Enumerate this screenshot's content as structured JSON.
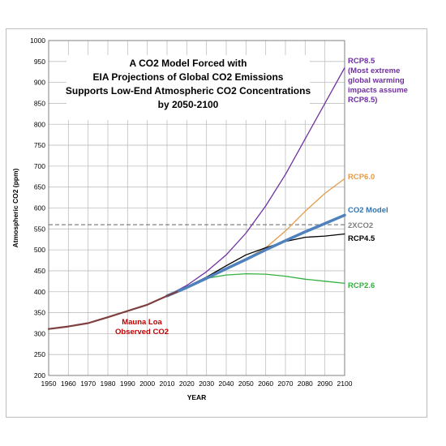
{
  "chart_data": {
    "type": "line",
    "title_lines": [
      "A CO2 Model Forced with",
      "EIA Projections of Global CO2 Emissions",
      "Supports Low-End Atmospheric CO2 Concentrations",
      "by 2050-2100"
    ],
    "xlabel": "YEAR",
    "ylabel": "Atmospheric CO2 (ppm)",
    "xlim": [
      1950,
      2100
    ],
    "ylim": [
      200,
      1000
    ],
    "xticks": [
      "1950",
      "1960",
      "1970",
      "1980",
      "1990",
      "2000",
      "2010",
      "2020",
      "2030",
      "2040",
      "2050",
      "2060",
      "2070",
      "2080",
      "2090",
      "2100"
    ],
    "yticks": [
      "200",
      "250",
      "300",
      "350",
      "400",
      "450",
      "500",
      "550",
      "600",
      "650",
      "700",
      "750",
      "800",
      "850",
      "900",
      "950",
      "1000"
    ],
    "grid": true,
    "reference_line": {
      "label": "2XCO2",
      "y": 560,
      "color": "#808080"
    },
    "annotation": [
      "Mauna Loa",
      "Observed CO2"
    ],
    "series": [
      {
        "name": "RCP8.5",
        "label_lines": [
          "RCP8.5",
          "(Most extreme",
          "global warming",
          "impacts assume",
          "RCP8.5)"
        ],
        "color": "#7030a0",
        "width": 1.3,
        "x": [
          2010,
          2020,
          2030,
          2040,
          2050,
          2060,
          2070,
          2080,
          2090,
          2100
        ],
        "y": [
          390,
          415,
          448,
          488,
          540,
          605,
          680,
          765,
          850,
          935
        ]
      },
      {
        "name": "RCP6.0",
        "label_lines": [
          "RCP6.0"
        ],
        "color": "#e59b4a",
        "width": 1.3,
        "x": [
          2010,
          2020,
          2030,
          2040,
          2050,
          2060,
          2070,
          2080,
          2090,
          2100
        ],
        "y": [
          390,
          410,
          432,
          455,
          478,
          505,
          545,
          592,
          635,
          670
        ]
      },
      {
        "name": "RCP4.5",
        "label_lines": [
          "RCP4.5"
        ],
        "color": "#000000",
        "width": 1.3,
        "x": [
          2010,
          2020,
          2030,
          2040,
          2050,
          2060,
          2070,
          2080,
          2090,
          2100
        ],
        "y": [
          390,
          412,
          435,
          462,
          488,
          505,
          520,
          530,
          533,
          538
        ]
      },
      {
        "name": "RCP2.6",
        "label_lines": [
          "RCP2.6"
        ],
        "color": "#33b040",
        "width": 1.3,
        "x": [
          2010,
          2020,
          2030,
          2040,
          2050,
          2060,
          2070,
          2080,
          2090,
          2100
        ],
        "y": [
          390,
          412,
          432,
          440,
          443,
          442,
          437,
          430,
          425,
          420
        ]
      },
      {
        "name": "CO2 Model",
        "label_lines": [
          "CO2 Model"
        ],
        "color": "#4f81bd",
        "width": 3.5,
        "x": [
          2010,
          2020,
          2030,
          2040,
          2050,
          2060,
          2070,
          2080,
          2090,
          2100
        ],
        "y": [
          390,
          410,
          432,
          455,
          477,
          500,
          522,
          543,
          563,
          583
        ]
      },
      {
        "name": "Mauna Loa Observed CO2",
        "color": "#7f3f3f",
        "width": 2.2,
        "x": [
          1950,
          1960,
          1970,
          1980,
          1990,
          2000,
          2010,
          2015
        ],
        "y": [
          311,
          317,
          325,
          339,
          354,
          369,
          390,
          400
        ]
      }
    ],
    "series_label_colors": {
      "RCP8.5": "#7030a0",
      "RCP6.0": "#e59b4a",
      "CO2 Model": "#2e75b6",
      "2XCO2": "#808080",
      "RCP4.5": "#000000",
      "RCP2.6": "#33b040"
    }
  }
}
